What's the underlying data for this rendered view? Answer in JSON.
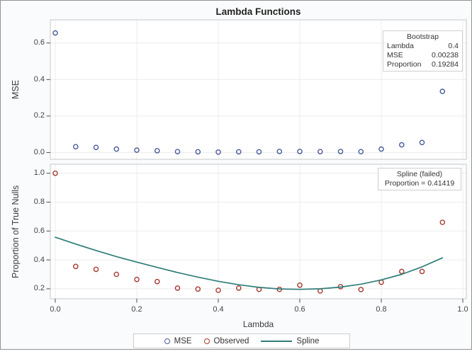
{
  "title": "Lambda Functions",
  "colors": {
    "mse": "#4a5c99",
    "observed": "#a5392f",
    "spline": "#2e7d79",
    "grid": "#ececec",
    "panel_border": "#c5c7c9",
    "panel_fill": "#ffffff",
    "tick_mark": "#4d4d4d",
    "frame_background": "#fafbfc",
    "frame_border": "#919191",
    "text": "#3c3c3c"
  },
  "x_axis": {
    "label": "Lambda",
    "tick_labels": [
      "0.0",
      "0.2",
      "0.4",
      "0.6",
      "0.8",
      "1.0"
    ],
    "tick_values": [
      0.0,
      0.2,
      0.4,
      0.6,
      0.8,
      1.0
    ],
    "xlim": [
      -0.012,
      1.008
    ]
  },
  "chart_data": [
    {
      "type": "scatter",
      "panel": "top",
      "ylabel": "MSE",
      "yticks": {
        "labels": [
          "0.0",
          "0.2",
          "0.4",
          "0.6"
        ],
        "values": [
          0.0,
          0.2,
          0.4,
          0.6
        ]
      },
      "ylim": [
        -0.037,
        0.727
      ],
      "grid": true,
      "x_values": [
        0.0,
        0.05,
        0.1,
        0.15,
        0.2,
        0.25,
        0.3,
        0.35,
        0.4,
        0.45,
        0.5,
        0.55,
        0.6,
        0.65,
        0.7,
        0.75,
        0.8,
        0.85,
        0.9,
        0.95
      ],
      "series": [
        {
          "name": "MSE",
          "type": "scatter",
          "color_key": "mse",
          "values": [
            0.655,
            0.032,
            0.028,
            0.019,
            0.013,
            0.01,
            0.005,
            0.004,
            0.0024,
            0.004,
            0.004,
            0.006,
            0.006,
            0.005,
            0.006,
            0.005,
            0.019,
            0.042,
            0.055,
            0.335
          ]
        }
      ],
      "inset": "bootstrap"
    },
    {
      "type": "scatter+line",
      "panel": "bottom",
      "ylabel": "Proportion of True Nulls",
      "yticks": {
        "labels": [
          "0.2",
          "0.4",
          "0.6",
          "0.8",
          "1.0"
        ],
        "values": [
          0.2,
          0.4,
          0.6,
          0.8,
          1.0
        ]
      },
      "ylim": [
        0.131,
        1.062
      ],
      "grid": true,
      "x_values": [
        0.0,
        0.05,
        0.1,
        0.15,
        0.2,
        0.25,
        0.3,
        0.35,
        0.4,
        0.45,
        0.5,
        0.55,
        0.6,
        0.65,
        0.7,
        0.75,
        0.8,
        0.85,
        0.9,
        0.95
      ],
      "series": [
        {
          "name": "Observed",
          "type": "scatter",
          "color_key": "observed",
          "values": [
            1.0,
            0.355,
            0.335,
            0.3,
            0.265,
            0.25,
            0.205,
            0.198,
            0.19,
            0.205,
            0.196,
            0.196,
            0.225,
            0.185,
            0.215,
            0.195,
            0.245,
            0.32,
            0.32,
            0.66
          ]
        },
        {
          "name": "Spline",
          "type": "line",
          "color_key": "spline",
          "values": [
            0.557,
            0.51,
            0.465,
            0.423,
            0.385,
            0.348,
            0.313,
            0.281,
            0.252,
            0.228,
            0.21,
            0.199,
            0.196,
            0.2,
            0.212,
            0.232,
            0.262,
            0.3,
            0.352,
            0.414
          ]
        }
      ],
      "inset": "spline"
    }
  ],
  "insets": {
    "bootstrap": {
      "title": "Bootstrap",
      "rows": [
        {
          "label": "Lambda",
          "value": "0.4"
        },
        {
          "label": "MSE",
          "value": "0.00238"
        },
        {
          "label": "Proportion",
          "value": "0.19284"
        }
      ]
    },
    "spline": {
      "line1": "Spline (failed)",
      "line2": "Proportion = 0.41419"
    }
  },
  "legend": {
    "items": [
      {
        "label": "MSE",
        "marker": "circle",
        "color_key": "mse"
      },
      {
        "label": "Observed",
        "marker": "circle",
        "color_key": "observed"
      },
      {
        "label": "Spline",
        "marker": "line",
        "color_key": "spline"
      }
    ]
  }
}
